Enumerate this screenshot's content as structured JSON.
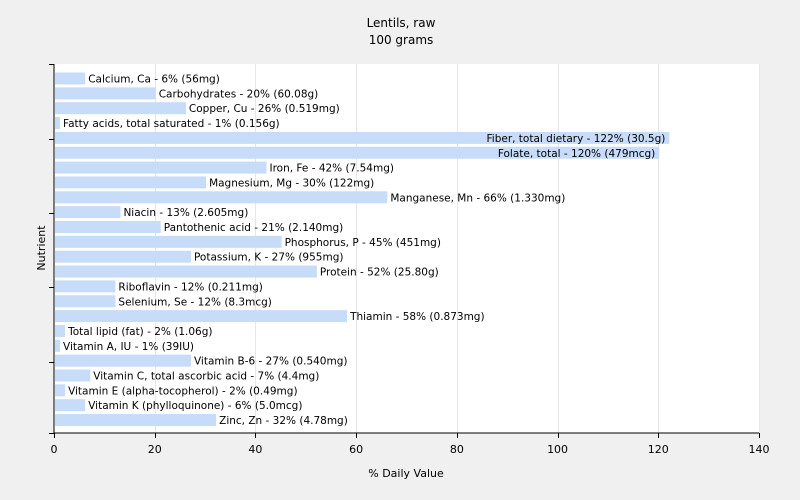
{
  "chart_data": {
    "type": "bar",
    "orientation": "horizontal",
    "title": "Lentils, raw",
    "subtitle": "100 grams",
    "xlabel": "% Daily Value",
    "ylabel": "Nutrient",
    "xlim": [
      0,
      140
    ],
    "xticks": [
      "0",
      "20",
      "40",
      "60",
      "80",
      "100",
      "120",
      "140"
    ],
    "grid": true,
    "bar_color": "#c6dcf8",
    "categories": [
      "Calcium, Ca - 6% (56mg)",
      "Carbohydrates - 20% (60.08g)",
      "Copper, Cu - 26% (0.519mg)",
      "Fatty acids, total saturated - 1% (0.156g)",
      "Fiber, total dietary - 122% (30.5g)",
      "Folate, total - 120% (479mcg)",
      "Iron, Fe - 42% (7.54mg)",
      "Magnesium, Mg - 30% (122mg)",
      "Manganese, Mn - 66% (1.330mg)",
      "Niacin - 13% (2.605mg)",
      "Pantothenic acid - 21% (2.140mg)",
      "Phosphorus, P - 45% (451mg)",
      "Potassium, K - 27% (955mg)",
      "Protein - 52% (25.80g)",
      "Riboflavin - 12% (0.211mg)",
      "Selenium, Se - 12% (8.3mcg)",
      "Thiamin - 58% (0.873mg)",
      "Total lipid (fat) - 2% (1.06g)",
      "Vitamin A, IU - 1% (39IU)",
      "Vitamin B-6 - 27% (0.540mg)",
      "Vitamin C, total ascorbic acid - 7% (4.4mg)",
      "Vitamin E (alpha-tocopherol) - 2% (0.49mg)",
      "Vitamin K (phylloquinone) - 6% (5.0mcg)",
      "Zinc, Zn - 32% (4.78mg)"
    ],
    "values": [
      6,
      20,
      26,
      1,
      122,
      120,
      42,
      30,
      66,
      13,
      21,
      45,
      27,
      52,
      12,
      12,
      58,
      2,
      1,
      27,
      7,
      2,
      6,
      32
    ]
  }
}
